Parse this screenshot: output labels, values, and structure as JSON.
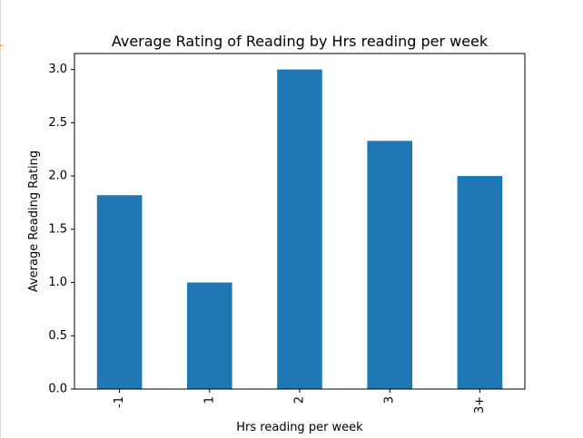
{
  "chart_data": {
    "type": "bar",
    "title": "Average Rating of Reading by Hrs reading per week",
    "xlabel": "Hrs reading per week",
    "ylabel": "Average Reading Rating",
    "categories": [
      "-1",
      "1",
      "2",
      "3",
      "3+"
    ],
    "values": [
      1.82,
      1.0,
      3.0,
      2.33,
      2.0
    ],
    "ylim": [
      0,
      3.15
    ],
    "yticks": [
      "0.0",
      "0.5",
      "1.0",
      "1.5",
      "2.0",
      "2.5",
      "3.0"
    ],
    "bar_color": "#1f77b4",
    "grid": false,
    "legend": false
  }
}
